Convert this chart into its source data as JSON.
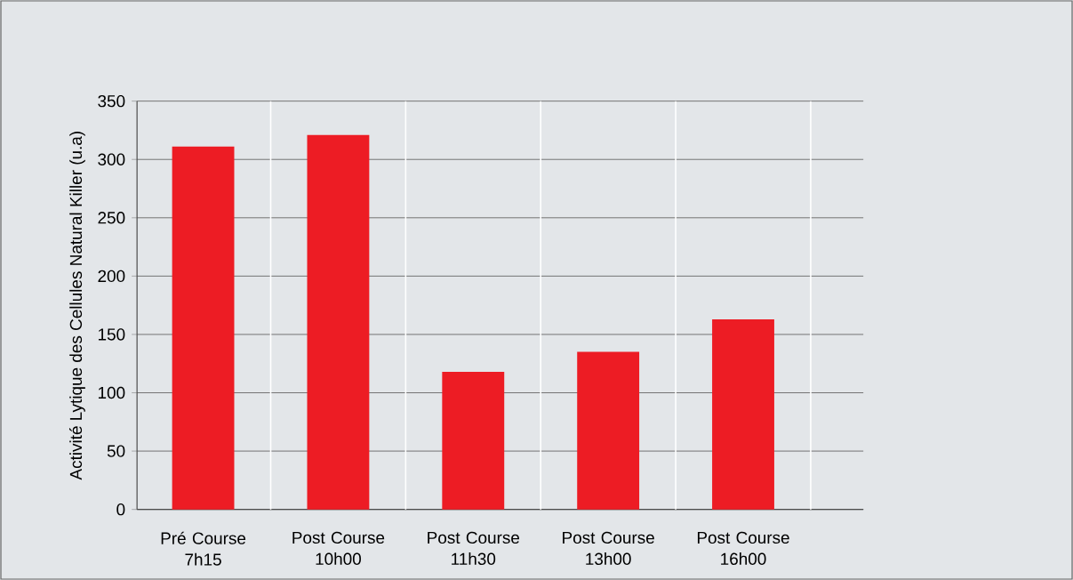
{
  "chart_data": {
    "type": "bar",
    "ylabel": "Activité Lytique des Cellules Natural Killer (u.a)",
    "categories": [
      "Pré Course 7h15",
      "Post Course 10h00",
      "Post Course 11h30",
      "Post Course 13h00",
      "Post Course 16h00"
    ],
    "values": [
      311,
      321,
      118,
      135,
      163
    ],
    "color": "#ed1c24",
    "ylim": [
      0,
      350
    ],
    "yticks": [
      0,
      50,
      100,
      150,
      200,
      250,
      300,
      350
    ],
    "grid": true
  }
}
